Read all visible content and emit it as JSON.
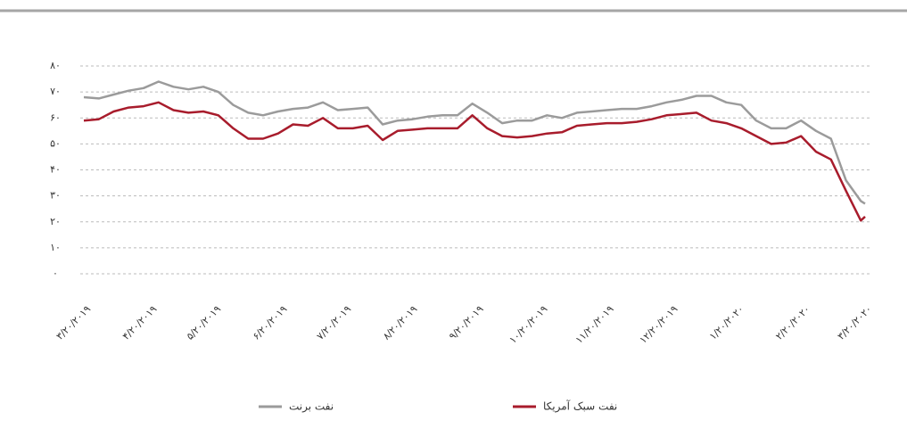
{
  "chart_data": {
    "type": "line",
    "x": [
      "2019-03-20",
      "2019-03-27",
      "2019-04-03",
      "2019-04-10",
      "2019-04-17",
      "2019-04-24",
      "2019-05-01",
      "2019-05-08",
      "2019-05-15",
      "2019-05-22",
      "2019-05-29",
      "2019-06-05",
      "2019-06-12",
      "2019-06-19",
      "2019-06-26",
      "2019-07-03",
      "2019-07-10",
      "2019-07-17",
      "2019-07-24",
      "2019-07-31",
      "2019-08-07",
      "2019-08-14",
      "2019-08-21",
      "2019-08-28",
      "2019-09-04",
      "2019-09-11",
      "2019-09-18",
      "2019-09-25",
      "2019-10-02",
      "2019-10-09",
      "2019-10-16",
      "2019-10-23",
      "2019-10-30",
      "2019-11-06",
      "2019-11-13",
      "2019-11-20",
      "2019-11-27",
      "2019-12-04",
      "2019-12-11",
      "2019-12-18",
      "2019-12-25",
      "2020-01-01",
      "2020-01-08",
      "2020-01-15",
      "2020-01-22",
      "2020-01-29",
      "2020-02-05",
      "2020-02-12",
      "2020-02-19",
      "2020-02-26",
      "2020-03-04",
      "2020-03-11",
      "2020-03-18",
      "2020-03-20"
    ],
    "series": [
      {
        "name": "نفت برنت",
        "color": "#9b9b9b",
        "values": [
          68,
          67.5,
          69,
          70.5,
          71.5,
          74,
          72,
          71,
          72,
          70,
          65,
          62,
          61,
          62.5,
          63.5,
          64,
          66,
          63,
          63.5,
          64,
          57.5,
          59,
          59.5,
          60.5,
          61,
          61,
          65.5,
          62,
          58,
          59,
          59,
          61,
          60,
          62,
          62.5,
          63,
          63.5,
          63.5,
          64.5,
          66,
          67,
          68.5,
          68.5,
          66,
          65,
          59,
          56,
          56,
          59,
          55,
          52,
          36,
          28,
          27
        ]
      },
      {
        "name": "نفت سبک آمریکا",
        "color": "#a81c2c",
        "values": [
          59,
          59.5,
          62.5,
          64,
          64.5,
          66,
          63,
          62,
          62.5,
          61,
          56,
          52,
          52,
          54,
          57.5,
          57,
          60,
          56,
          56,
          57,
          51.5,
          55,
          55.5,
          56,
          56,
          56,
          61,
          56,
          53,
          52.5,
          53,
          54,
          54.5,
          57,
          57.5,
          58,
          58,
          58.5,
          59.5,
          61,
          61.5,
          62,
          59,
          58,
          56,
          53,
          50,
          50.5,
          53,
          47,
          44,
          32,
          20.5,
          22
        ]
      }
    ],
    "xlim": [
      "2019-03-20",
      "2020-03-20"
    ],
    "xticks": [
      {
        "value": "2019-03-20",
        "label": "۳/۲۰/۲۰۱۹"
      },
      {
        "value": "2019-04-20",
        "label": "۴/۲۰/۲۰۱۹"
      },
      {
        "value": "2019-05-20",
        "label": "۵/۲۰/۲۰۱۹"
      },
      {
        "value": "2019-06-20",
        "label": "۶/۲۰/۲۰۱۹"
      },
      {
        "value": "2019-07-20",
        "label": "۷/۲۰/۲۰۱۹"
      },
      {
        "value": "2019-08-20",
        "label": "۸/۲۰/۲۰۱۹"
      },
      {
        "value": "2019-09-20",
        "label": "۹/۲۰/۲۰۱۹"
      },
      {
        "value": "2019-10-20",
        "label": "۱۰/۲۰/۲۰۱۹"
      },
      {
        "value": "2019-11-20",
        "label": "۱۱/۲۰/۲۰۱۹"
      },
      {
        "value": "2019-12-20",
        "label": "۱۲/۲۰/۲۰۱۹"
      },
      {
        "value": "2020-01-20",
        "label": "۱/۲۰/۲۰۲۰"
      },
      {
        "value": "2020-02-20",
        "label": "۲/۲۰/۲۰۲۰"
      },
      {
        "value": "2020-03-20",
        "label": "۳/۲۰/۲۰۲۰"
      }
    ],
    "ylim": [
      0,
      80
    ],
    "yticks": [
      {
        "value": 0,
        "label": "۰"
      },
      {
        "value": 10,
        "label": "۱۰"
      },
      {
        "value": 20,
        "label": "۲۰"
      },
      {
        "value": 30,
        "label": "۳۰"
      },
      {
        "value": 40,
        "label": "۴۰"
      },
      {
        "value": 50,
        "label": "۵۰"
      },
      {
        "value": 60,
        "label": "۶۰"
      },
      {
        "value": 70,
        "label": "۷۰"
      },
      {
        "value": 80,
        "label": "۸۰"
      }
    ],
    "grid": true
  }
}
